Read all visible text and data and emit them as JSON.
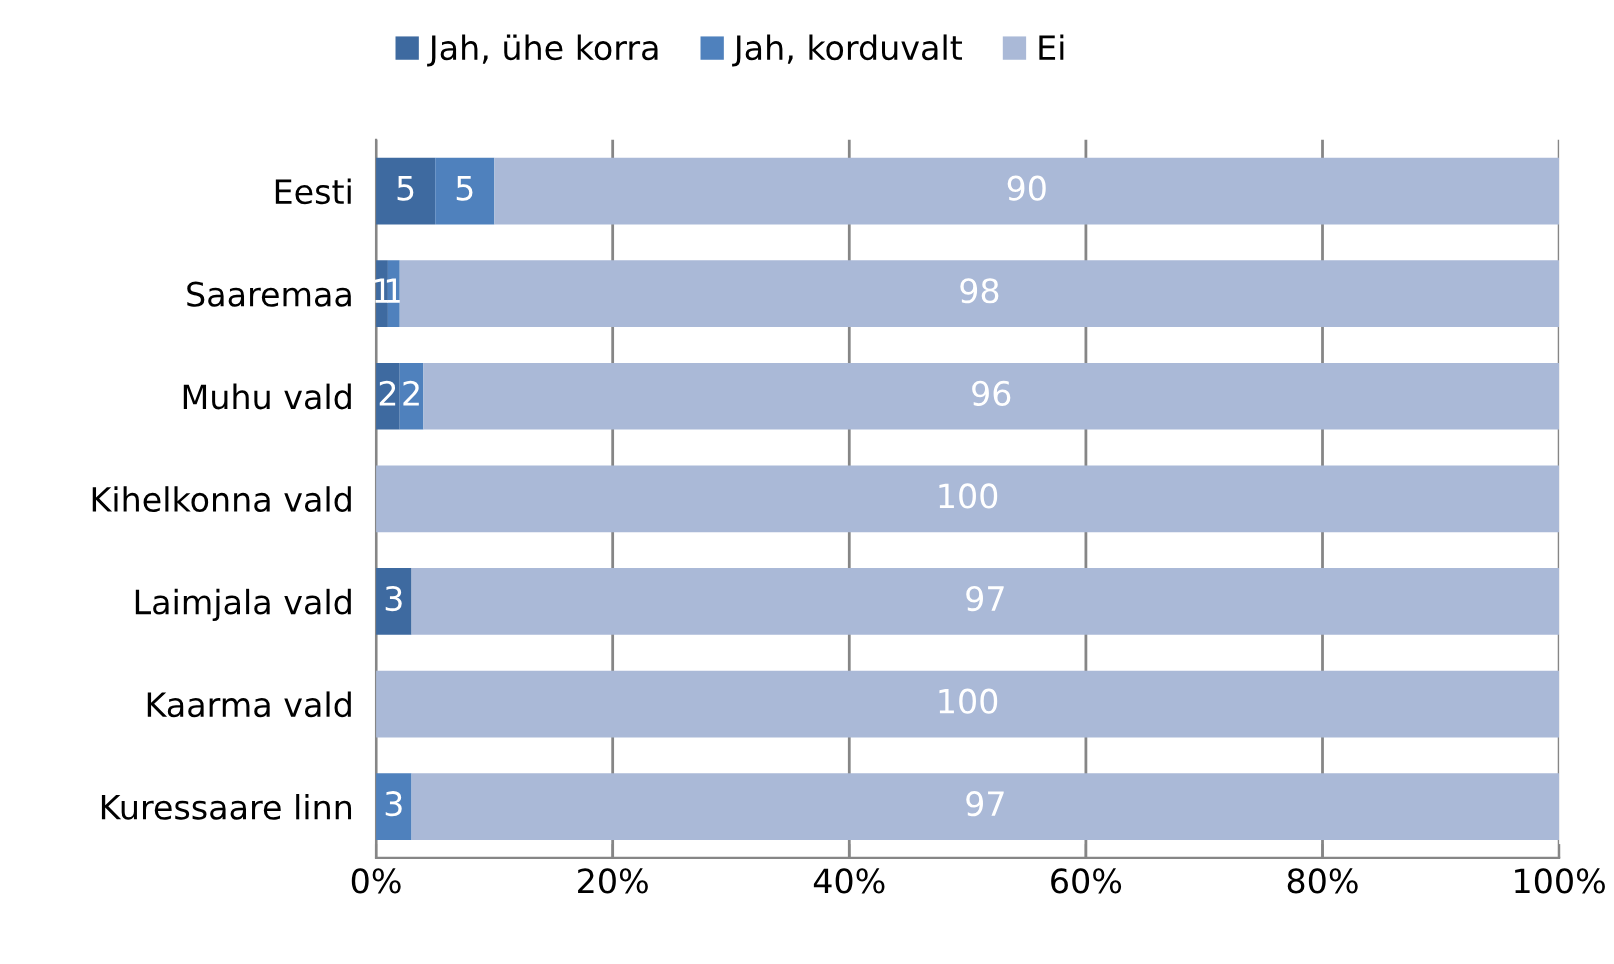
{
  "chart_data": {
    "type": "bar",
    "orientation": "horizontal",
    "stacked": true,
    "categories": [
      "Eesti",
      "Saaremaa",
      "Muhu vald",
      "Kihelkonna vald",
      "Laimjala vald",
      "Kaarma vald",
      "Kuressaare linn"
    ],
    "series": [
      {
        "name": "Jah, ühe korra",
        "color": "#3e6aa0",
        "values": [
          5,
          1,
          2,
          0,
          3,
          0,
          0
        ],
        "value_labels": [
          "5",
          "1",
          "2",
          null,
          "3",
          null,
          null
        ]
      },
      {
        "name": "Jah, korduvalt",
        "color": "#4f81bd",
        "values": [
          5,
          1,
          2,
          0,
          0,
          0,
          3
        ],
        "value_labels": [
          "5",
          "1",
          "2",
          null,
          null,
          null,
          "3"
        ]
      },
      {
        "name": "Ei",
        "color": "#aab9d7",
        "values": [
          90,
          98,
          96,
          100,
          97,
          100,
          97
        ],
        "value_labels": [
          "90",
          "98",
          "96",
          "100",
          "97",
          "100",
          "97"
        ]
      }
    ],
    "xlim": [
      0,
      100
    ],
    "xticks": [
      {
        "value": 0,
        "label": "0%"
      },
      {
        "value": 20,
        "label": "20%"
      },
      {
        "value": 40,
        "label": "40%"
      },
      {
        "value": 60,
        "label": "60%"
      },
      {
        "value": 80,
        "label": "80%"
      },
      {
        "value": 100,
        "label": "100%"
      }
    ],
    "grid": "x",
    "legend": "top"
  }
}
